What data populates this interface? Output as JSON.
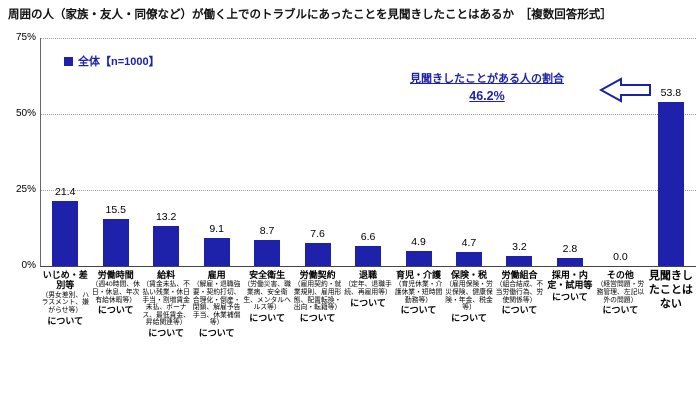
{
  "title": "周囲の人（家族・友人・同僚など）が働く上でのトラブルにあったことを見聞きしたことはあるか　［複数回答形式］",
  "legend": {
    "label": "全体【n=1000】"
  },
  "annotation": {
    "line1": "見聞きしたことがある人の割合",
    "value": "46.2%"
  },
  "colors": {
    "bar": "#1e22aa",
    "accent": "#1e22aa"
  },
  "chart_data": {
    "type": "bar",
    "title": "周囲の人（家族・友人・同僚など）が働く上でのトラブルにあったことを見聞きしたことはあるか",
    "subtitle": "複数回答形式",
    "legend_entries": [
      "全体【n=1000】"
    ],
    "ylim": [
      0,
      75
    ],
    "yticks": [
      "75%",
      "50%",
      "25%",
      "0%"
    ],
    "grid": "dotted horizontal at 25/50/75",
    "legend_position": "top-left",
    "categories": [
      {
        "main": "いじめ・差別等",
        "note": "（男女差別、ハラスメント、嫌がらせ等）",
        "suffix": "について",
        "big": false
      },
      {
        "main": "労働時間",
        "note": "（週40時間、休日・休息、年次有給休暇等）",
        "suffix": "について",
        "big": false
      },
      {
        "main": "給料",
        "note": "（賃金未払、不払い残業・休日手当・割増賃金未払、ボーナス、最低賃金、昇給関連等）",
        "suffix": "について",
        "big": false
      },
      {
        "main": "雇用",
        "note": "（解雇・退職強要・契約打切、合理化・倒産・閉鎖、解雇予告手当、休業補償等）",
        "suffix": "について",
        "big": false
      },
      {
        "main": "安全衛生",
        "note": "（労働災害、職業病、安全衛生、メンタルヘルス等）",
        "suffix": "について",
        "big": false
      },
      {
        "main": "労働契約",
        "note": "（雇用契約・就業規則、雇用形態、配置転換・出向・転籍等）",
        "suffix": "について",
        "big": false
      },
      {
        "main": "退職",
        "note": "（定年、退職手続、再雇用等）",
        "suffix": "について",
        "big": false
      },
      {
        "main": "育児・介護",
        "note": "（育児休業・介護休業・短時間勤務等）",
        "suffix": "について",
        "big": false
      },
      {
        "main": "保険・税",
        "note": "（雇用保険・労災保険、健康保険・年金、税金等）",
        "suffix": "について",
        "big": false
      },
      {
        "main": "労働組合",
        "note": "（組合結成、不当労働行為、労使関係等）",
        "suffix": "について",
        "big": false
      },
      {
        "main": "採用・内定・試用等",
        "note": "",
        "suffix": "について",
        "big": false
      },
      {
        "main": "その他",
        "note": "（経営問題・労務管理、左記以外の問題）",
        "suffix": "について",
        "big": false
      },
      {
        "main": "見聞きしたことはない",
        "note": "",
        "suffix": "",
        "big": true
      }
    ],
    "values": [
      21.4,
      15.5,
      13.2,
      9.1,
      8.7,
      7.6,
      6.6,
      4.9,
      4.7,
      3.2,
      2.8,
      0.0,
      53.8
    ]
  }
}
